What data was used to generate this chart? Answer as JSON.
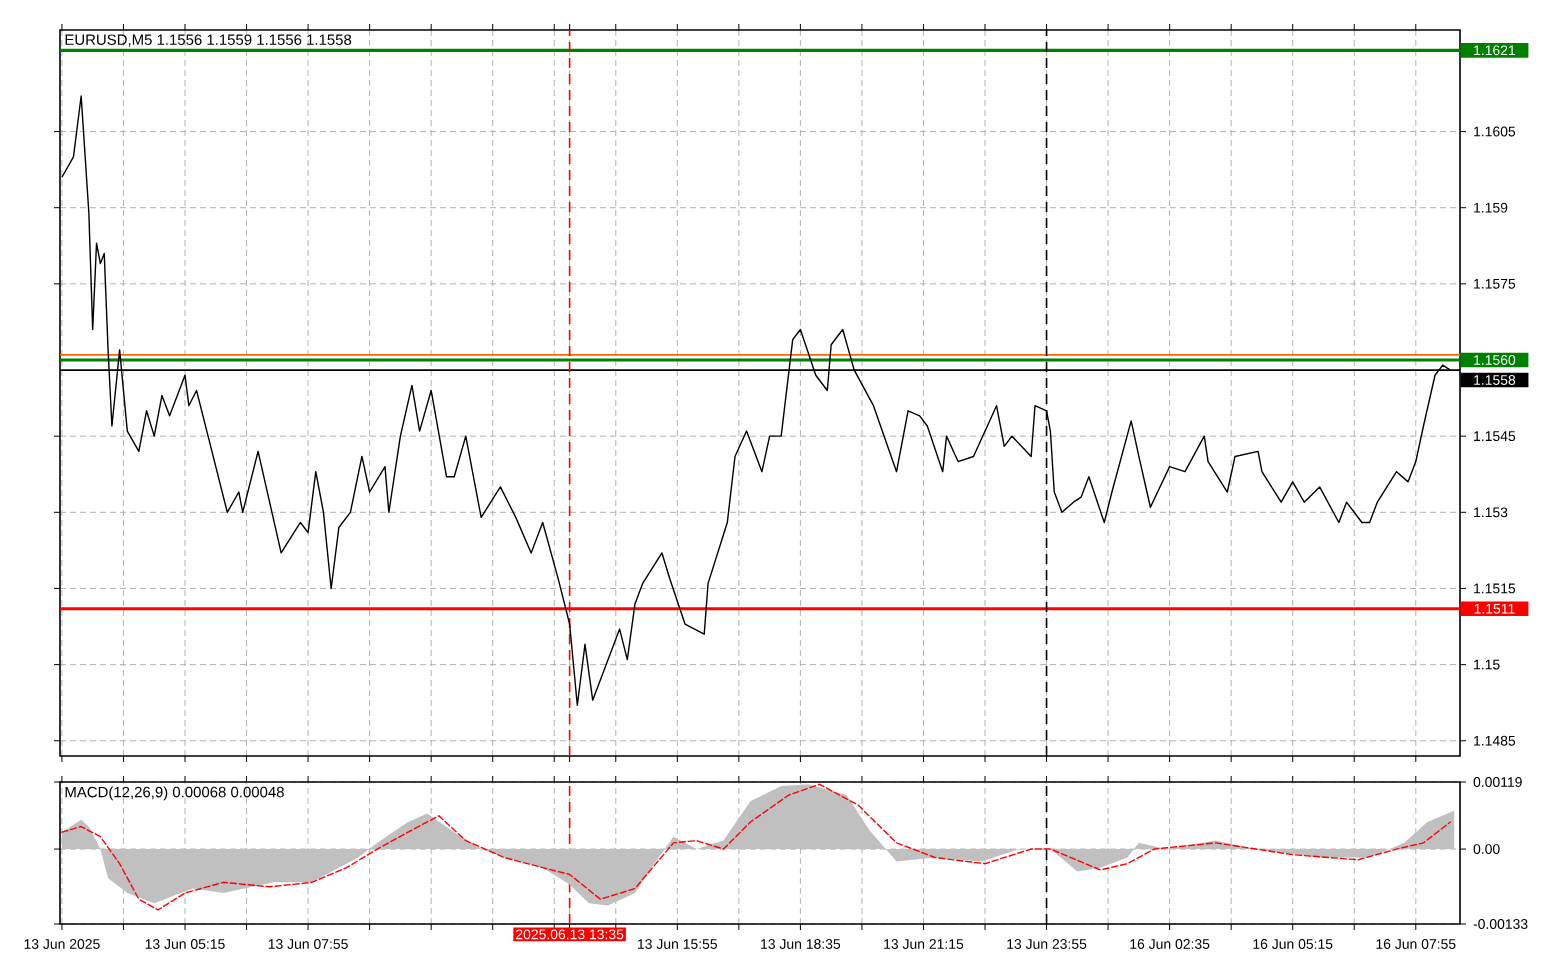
{
  "chart_data": [
    {
      "type": "line",
      "title": "EURUSD,M5  1.1556 1.1559 1.1556 1.1558",
      "categories": [
        "13 Jun 2025",
        null,
        null,
        null,
        null,
        null,
        null,
        null,
        null,
        null,
        null,
        null,
        null,
        null,
        null,
        null,
        null,
        null,
        null,
        null,
        null,
        null,
        null,
        null,
        null,
        null,
        null,
        null,
        null,
        null,
        null,
        null,
        "13 Jun 05:15",
        null,
        null,
        null,
        null,
        null,
        null,
        null,
        null,
        null,
        null,
        null,
        null,
        null,
        null,
        null,
        null,
        null,
        null,
        null,
        null,
        null,
        null,
        null,
        null,
        null,
        null,
        null,
        null,
        null,
        null,
        null,
        "13 Jun 07:55",
        null,
        null,
        null,
        null,
        null,
        null,
        null,
        null,
        null,
        null,
        null,
        null,
        null,
        null,
        null,
        null,
        null,
        null,
        null,
        null,
        null,
        null,
        null,
        null,
        null,
        null,
        null,
        null,
        null,
        null,
        null,
        null,
        null,
        null,
        null,
        null,
        null,
        null,
        null,
        null,
        null,
        null,
        null,
        null,
        null,
        null,
        null,
        null,
        null,
        null,
        null,
        null,
        null,
        null,
        null,
        null,
        null,
        null,
        null,
        null,
        null,
        null,
        null,
        null,
        null,
        null,
        null,
        "2025.06.13 13:35",
        null,
        null,
        null,
        null,
        null,
        null,
        null,
        null,
        null,
        null,
        null,
        null,
        null,
        null,
        null,
        null,
        null,
        null,
        null,
        null,
        null,
        null,
        null,
        null,
        null,
        null,
        null,
        "13 Jun 15:55",
        null,
        null,
        null,
        null,
        null,
        null,
        null,
        null,
        null,
        null,
        null,
        null,
        null,
        null,
        null,
        null,
        null,
        null,
        null,
        null,
        null,
        null,
        null,
        null,
        null,
        null,
        null,
        null,
        null,
        null,
        null,
        "13 Jun 18:35",
        null,
        null,
        null,
        null,
        null,
        null,
        null,
        null,
        null,
        null,
        null,
        null,
        null,
        null,
        null,
        null,
        null,
        null,
        null,
        null,
        null,
        null,
        null,
        null,
        null,
        null,
        null,
        null,
        null,
        null,
        null,
        "13 Jun 21:15",
        null,
        null,
        null,
        null,
        null,
        null,
        null,
        null,
        null,
        null,
        null,
        null,
        null,
        null,
        null,
        null,
        null,
        null,
        null,
        null,
        null,
        null,
        null,
        null,
        null,
        null,
        null,
        null,
        null,
        null,
        null,
        "13 Jun 23:55",
        null,
        null,
        null,
        null,
        null,
        null,
        null,
        null,
        null,
        null,
        null,
        null,
        null,
        null,
        null,
        null,
        null,
        null,
        null,
        null,
        null,
        null,
        null,
        null,
        null,
        null,
        null,
        null,
        null,
        null,
        null,
        "16 Jun 02:35",
        null,
        null,
        null,
        null,
        null,
        null,
        null,
        null,
        null,
        null,
        null,
        null,
        null,
        null,
        null,
        null,
        null,
        null,
        null,
        null,
        null,
        null,
        null,
        null,
        null,
        null,
        null,
        null,
        null,
        null,
        null,
        "16 Jun 05:15",
        null,
        null,
        null,
        null,
        null,
        null,
        null,
        null,
        null,
        null,
        null,
        null,
        null,
        null,
        null,
        null,
        null,
        null,
        null,
        null,
        null,
        null,
        null,
        null,
        null,
        null,
        null,
        null,
        null,
        null,
        null,
        "16 Jun 07:55",
        null,
        null,
        null,
        null,
        null,
        null,
        null,
        null,
        null,
        null,
        null
      ],
      "series": [
        {
          "color": "#000000",
          "values": [
            1.1596,
            null,
            null,
            1.16,
            null,
            1.1612,
            null,
            1.1589,
            1.1566,
            1.1583,
            1.1579,
            1.1581,
            1.1562,
            1.1547,
            null,
            1.1562,
            null,
            1.1546,
            null,
            null,
            1.1542,
            null,
            1.155,
            null,
            1.1545,
            null,
            1.1553,
            null,
            1.1549,
            null,
            null,
            null,
            1.1557,
            1.1551,
            null,
            1.1554,
            null,
            null,
            1.1545,
            null,
            null,
            null,
            null,
            1.153,
            null,
            null,
            1.1534,
            1.153,
            null,
            null,
            null,
            1.1542,
            null,
            null,
            null,
            null,
            null,
            1.1522,
            null,
            null,
            null,
            null,
            1.1528,
            null,
            1.1526,
            null,
            1.1538,
            null,
            1.153,
            null,
            1.1515,
            null,
            1.1527,
            null,
            null,
            1.153,
            null,
            null,
            1.1541,
            null,
            1.1534,
            null,
            null,
            null,
            1.1539,
            1.153,
            null,
            null,
            1.1545,
            null,
            null,
            1.1555,
            null,
            1.1546,
            null,
            null,
            1.1554,
            null,
            null,
            null,
            1.1537,
            null,
            1.1537,
            null,
            null,
            1.1545,
            null,
            null,
            null,
            1.1529,
            null,
            null,
            null,
            null,
            1.1535,
            null,
            null,
            null,
            1.1529,
            null,
            null,
            null,
            1.1522,
            null,
            null,
            1.1528,
            null,
            null,
            null,
            1.1517,
            null,
            null,
            1.1508,
            null,
            1.1492,
            null,
            1.1504,
            null,
            1.1493,
            null,
            null,
            null,
            null,
            null,
            null,
            1.1507,
            null,
            1.1501,
            null,
            1.1512,
            null,
            1.1516,
            null,
            null,
            null,
            null,
            1.1522,
            null,
            1.1517,
            null,
            null,
            null,
            1.1508,
            null,
            null,
            null,
            null,
            1.1506,
            1.1516,
            null,
            null,
            null,
            null,
            1.1528,
            null,
            1.1541,
            null,
            null,
            1.1546,
            null,
            null,
            null,
            1.1538,
            null,
            1.1545,
            null,
            null,
            1.1545,
            null,
            null,
            1.1564,
            null,
            1.1566,
            null,
            null,
            null,
            1.1557,
            null,
            null,
            1.1554,
            1.1563,
            null,
            null,
            1.1566,
            null,
            null,
            1.1558,
            null,
            null,
            null,
            null,
            1.1551,
            null,
            null,
            null,
            null,
            null,
            1.1538,
            null,
            null,
            1.155,
            null,
            null,
            1.1549,
            null,
            1.1547,
            null,
            null,
            null,
            1.1538,
            1.1545,
            null,
            null,
            1.154,
            null,
            null,
            null,
            1.1541,
            null,
            null,
            null,
            null,
            null,
            1.1551,
            null,
            1.1543,
            null,
            1.1545,
            null,
            null,
            null,
            null,
            1.1541,
            1.1551,
            null,
            null,
            1.155,
            1.1546,
            1.1534,
            null,
            1.153,
            null,
            null,
            1.1532,
            null,
            1.1533,
            null,
            1.1537,
            null,
            null,
            null,
            1.1528,
            null,
            1.1534,
            null,
            null,
            null,
            null,
            1.1548,
            null,
            1.1541,
            null,
            null,
            1.1531,
            null,
            null,
            null,
            null,
            1.1539,
            null,
            null,
            null,
            1.1538,
            null,
            null,
            null,
            null,
            1.1545,
            1.154,
            null,
            null,
            null,
            null,
            1.1534,
            null,
            1.1541,
            null,
            null,
            null,
            null,
            null,
            1.1542,
            1.1538,
            null,
            null,
            null,
            null,
            1.1532,
            null,
            null,
            1.1536,
            null,
            null,
            1.1532,
            null,
            null,
            null,
            1.1535,
            null,
            null,
            null,
            null,
            1.1528,
            null,
            1.1532,
            null,
            null,
            null,
            1.1528,
            null,
            1.1528,
            null,
            1.1532,
            null,
            null,
            null,
            null,
            1.1538,
            null,
            null,
            1.1536,
            null,
            1.154,
            null,
            1.1547,
            null,
            null,
            1.1557,
            null,
            1.1559,
            null,
            1.1558,
            null,
            null
          ]
        }
      ],
      "ylim": [
        1.1482,
        1.1625
      ],
      "yticks": [
        1.1485,
        1.15,
        1.1515,
        1.153,
        1.1545,
        1.1575,
        1.159,
        1.1605
      ],
      "grid": true,
      "tick_labels": "y",
      "ref_lines": [
        {
          "axis": "y",
          "value": 1.1621,
          "label": "1.1621",
          "color": "#008000",
          "line_style": "solid"
        },
        {
          "axis": "y",
          "value": 1.1561,
          "label": null,
          "color": "#ff6600",
          "line_style": "solid"
        },
        {
          "axis": "y",
          "value": 1.156,
          "label": "1.1560",
          "color": "#008000",
          "line_style": "solid"
        },
        {
          "axis": "y",
          "value": 1.1558,
          "label": "1.1558",
          "color": "#000000",
          "line_style": "solid"
        },
        {
          "axis": "y",
          "value": 1.1511,
          "label": "1.1511",
          "color": "#ff0000",
          "line_style": "solid"
        },
        {
          "axis": "x",
          "value": "2025.06.13 13:35",
          "color": "#ff0000",
          "line_style": "dashed"
        },
        {
          "axis": "x",
          "value": "13 Jun 23:55",
          "color": "#000000",
          "line_style": "dashed"
        }
      ]
    },
    {
      "type": "line",
      "title": "MACD(12,26,9) 0.00068 0.00048",
      "categories": [
        "13 Jun 2025",
        null,
        null,
        null,
        null,
        null,
        null,
        null,
        null,
        null,
        null,
        null,
        null,
        null,
        null,
        null,
        null,
        null,
        null,
        null,
        null,
        null,
        null,
        null,
        null,
        null,
        null,
        null,
        null,
        null,
        null,
        null,
        "13 Jun 05:15",
        null,
        null,
        null,
        null,
        null,
        null,
        null,
        null,
        null,
        null,
        null,
        null,
        null,
        null,
        null,
        null,
        null,
        null,
        null,
        null,
        null,
        null,
        null,
        null,
        null,
        null,
        null,
        null,
        null,
        null,
        null,
        "13 Jun 07:55",
        null,
        null,
        null,
        null,
        null,
        null,
        null,
        null,
        null,
        null,
        null,
        null,
        null,
        null,
        null,
        null,
        null,
        null,
        null,
        null,
        null,
        null,
        null,
        null,
        null,
        null,
        null,
        null,
        null,
        null,
        null,
        null,
        null,
        null,
        null,
        null,
        null,
        null,
        null,
        null,
        null,
        null,
        null,
        null,
        null,
        null,
        null,
        null,
        null,
        null,
        null,
        null,
        null,
        null,
        null,
        null,
        null,
        null,
        null,
        null,
        null,
        null,
        null,
        null,
        null,
        null,
        null,
        "2025.06.13 13:35",
        null,
        null,
        null,
        null,
        null,
        null,
        null,
        null,
        null,
        null,
        null,
        null,
        null,
        null,
        null,
        null,
        null,
        null,
        null,
        null,
        null,
        null,
        null,
        null,
        null,
        null,
        null,
        "13 Jun 15:55",
        null,
        null,
        null,
        null,
        null,
        null,
        null,
        null,
        null,
        null,
        null,
        null,
        null,
        null,
        null,
        null,
        null,
        null,
        null,
        null,
        null,
        null,
        null,
        null,
        null,
        null,
        null,
        null,
        null,
        null,
        null,
        "13 Jun 18:35",
        null,
        null,
        null,
        null,
        null,
        null,
        null,
        null,
        null,
        null,
        null,
        null,
        null,
        null,
        null,
        null,
        null,
        null,
        null,
        null,
        null,
        null,
        null,
        null,
        null,
        null,
        null,
        null,
        null,
        null,
        null,
        "13 Jun 21:15",
        null,
        null,
        null,
        null,
        null,
        null,
        null,
        null,
        null,
        null,
        null,
        null,
        null,
        null,
        null,
        null,
        null,
        null,
        null,
        null,
        null,
        null,
        null,
        null,
        null,
        null,
        null,
        null,
        null,
        null,
        null,
        "13 Jun 23:55",
        null,
        null,
        null,
        null,
        null,
        null,
        null,
        null,
        null,
        null,
        null,
        null,
        null,
        null,
        null,
        null,
        null,
        null,
        null,
        null,
        null,
        null,
        null,
        null,
        null,
        null,
        null,
        null,
        null,
        null,
        null,
        "16 Jun 02:35",
        null,
        null,
        null,
        null,
        null,
        null,
        null,
        null,
        null,
        null,
        null,
        null,
        null,
        null,
        null,
        null,
        null,
        null,
        null,
        null,
        null,
        null,
        null,
        null,
        null,
        null,
        null,
        null,
        null,
        null,
        null,
        "16 Jun 05:15",
        null,
        null,
        null,
        null,
        null,
        null,
        null,
        null,
        null,
        null,
        null,
        null,
        null,
        null,
        null,
        null,
        null,
        null,
        null,
        null,
        null,
        null,
        null,
        null,
        null,
        null,
        null,
        null,
        null,
        null,
        null,
        "16 Jun 07:55",
        null,
        null,
        null,
        null,
        null,
        null,
        null,
        null,
        null,
        null,
        null
      ],
      "series": [
        {
          "type": "area",
          "color": "#c0c0c0",
          "values": [
            0.0003,
            null,
            null,
            null,
            null,
            0.00052,
            null,
            0.0004,
            null,
            null,
            0,
            null,
            -0.00052,
            null,
            null,
            null,
            null,
            -0.00078,
            null,
            null,
            null,
            null,
            null,
            null,
            -0.00096,
            null,
            null,
            null,
            null,
            null,
            null,
            null,
            null,
            null,
            -0.0007,
            null,
            null,
            null,
            null,
            null,
            null,
            null,
            -0.00078,
            null,
            null,
            null,
            null,
            null,
            null,
            null,
            null,
            null,
            null,
            null,
            null,
            -0.00059,
            null,
            null,
            null,
            null,
            null,
            null,
            null,
            null,
            null,
            -0.00059,
            null,
            null,
            null,
            null,
            null,
            null,
            -0.00033,
            null,
            null,
            null,
            null,
            -0.00015,
            null,
            null,
            null,
            null,
            0.00011,
            null,
            null,
            null,
            null,
            null,
            null,
            null,
            0.00048,
            null,
            null,
            null,
            null,
            0.00063,
            null,
            null,
            null,
            null,
            null,
            null,
            0.0003,
            null,
            null,
            null,
            null,
            null,
            null,
            0,
            null,
            null,
            null,
            null,
            null,
            -0.00015,
            null,
            null,
            null,
            null,
            null,
            null,
            null,
            null,
            null,
            -0.00033,
            null,
            null,
            null,
            null,
            null,
            null,
            -0.00063,
            null,
            null,
            null,
            null,
            -0.00096,
            null,
            null,
            null,
            null,
            -0.001,
            null,
            null,
            null,
            null,
            null,
            null,
            -0.00078,
            null,
            null,
            null,
            null,
            -0.00026,
            null,
            null,
            null,
            null,
            0.00022,
            null,
            null,
            null,
            null,
            null,
            0,
            null,
            null,
            null,
            null,
            null,
            null,
            0.00015,
            null,
            null,
            null,
            null,
            null,
            null,
            0.00085,
            null,
            null,
            null,
            null,
            null,
            null,
            null,
            0.00112,
            null,
            null,
            null,
            null,
            null,
            null,
            0.00115,
            null,
            null,
            null,
            null,
            null,
            null,
            null,
            null,
            null,
            0.00096,
            null,
            null,
            null,
            null,
            null,
            0.00033,
            null,
            null,
            null,
            null,
            null,
            null,
            -0.00022,
            null,
            null,
            null,
            null,
            null,
            null,
            null,
            null,
            null,
            -0.00015,
            null,
            null,
            null,
            null,
            null,
            null,
            null,
            null,
            null,
            null,
            null,
            -0.00022,
            null,
            null,
            null,
            null,
            null,
            null,
            null,
            null,
            null,
            0,
            null,
            null,
            null,
            null,
            null,
            null,
            null,
            0,
            null,
            null,
            null,
            null,
            null,
            null,
            -0.0004,
            null,
            null,
            null,
            null,
            null,
            -0.00033,
            null,
            null,
            null,
            null,
            null,
            null,
            -0.00015,
            null,
            null,
            0.00011,
            null,
            null,
            null,
            null,
            null,
            null,
            0,
            null,
            null,
            null,
            null,
            null,
            null,
            null,
            null,
            null,
            null,
            null,
            null,
            0.00015,
            null,
            null,
            null,
            null,
            null,
            null,
            null,
            null,
            null,
            0,
            null,
            null,
            null,
            null,
            null,
            null,
            null,
            null,
            null,
            null,
            null,
            null,
            null,
            null,
            null,
            null,
            -0.00015,
            null,
            null,
            null,
            null,
            null,
            null,
            null,
            null,
            null,
            null,
            null,
            null,
            -0.00015,
            null,
            null,
            null,
            null,
            null,
            null,
            null,
            null,
            0.00011,
            null,
            null,
            null,
            null,
            null,
            0.00048,
            null,
            null,
            null,
            null,
            null,
            null,
            0.00068,
            null
          ]
        },
        {
          "type": "line",
          "color": "#ff0000",
          "line_style": "dashed",
          "values": [
            0.0003,
            null,
            null,
            null,
            null,
            0.0004,
            null,
            null,
            null,
            null,
            0.00022,
            null,
            null,
            null,
            null,
            -0.00026,
            null,
            null,
            null,
            null,
            -0.00089,
            null,
            null,
            null,
            null,
            -0.00108,
            null,
            null,
            null,
            null,
            null,
            null,
            -0.00078,
            null,
            null,
            null,
            null,
            null,
            null,
            null,
            null,
            null,
            -0.00059,
            null,
            null,
            null,
            null,
            null,
            null,
            null,
            null,
            null,
            null,
            null,
            -0.00067,
            null,
            null,
            null,
            null,
            null,
            null,
            null,
            null,
            null,
            null,
            -0.00059,
            null,
            null,
            null,
            null,
            null,
            null,
            null,
            null,
            -0.00033,
            null,
            null,
            null,
            null,
            null,
            null,
            null,
            0,
            null,
            null,
            null,
            null,
            null,
            null,
            null,
            0.0003,
            null,
            null,
            null,
            null,
            null,
            null,
            null,
            0.00059,
            null,
            null,
            null,
            null,
            null,
            null,
            0.00015,
            null,
            null,
            null,
            null,
            null,
            null,
            null,
            null,
            null,
            -0.00015,
            null,
            null,
            null,
            null,
            null,
            null,
            null,
            null,
            null,
            -0.00033,
            null,
            null,
            null,
            null,
            null,
            null,
            -0.00045,
            null,
            null,
            null,
            null,
            null,
            null,
            null,
            -0.00089,
            null,
            null,
            null,
            null,
            null,
            null,
            null,
            null,
            -0.0007,
            null,
            null,
            null,
            null,
            null,
            null,
            null,
            null,
            null,
            0.00011,
            null,
            null,
            null,
            null,
            null,
            0.00015,
            null,
            null,
            null,
            null,
            null,
            null,
            0,
            null,
            null,
            null,
            null,
            null,
            null,
            0.00048,
            null,
            null,
            null,
            null,
            null,
            null,
            null,
            null,
            null,
            0.00096,
            null,
            null,
            null,
            null,
            null,
            null,
            null,
            0.00115,
            null,
            null,
            null,
            null,
            null,
            null,
            null,
            null,
            null,
            0.00078,
            null,
            null,
            null,
            null,
            null,
            null,
            null,
            null,
            null,
            0.00011,
            null,
            null,
            null,
            null,
            null,
            null,
            null,
            null,
            null,
            -0.00015,
            null,
            null,
            null,
            null,
            null,
            null,
            null,
            null,
            null,
            null,
            null,
            null,
            -0.00026,
            null,
            null,
            null,
            null,
            null,
            null,
            null,
            null,
            null,
            null,
            null,
            0,
            null,
            null,
            null,
            null,
            0,
            null,
            null,
            null,
            null,
            null,
            null,
            null,
            null,
            null,
            null,
            null,
            null,
            -0.00037,
            null,
            null,
            null,
            null,
            null,
            null,
            -0.00026,
            null,
            null,
            null,
            null,
            null,
            null,
            0,
            null,
            null,
            null,
            null,
            null,
            null,
            null,
            null,
            null,
            null,
            null,
            null,
            null,
            null,
            null,
            0.00011,
            null,
            null,
            null,
            null,
            null,
            null,
            null,
            null,
            null,
            null,
            null,
            null,
            null,
            null,
            null,
            null,
            null,
            null,
            null,
            -0.0001,
            null,
            null,
            null,
            null,
            null,
            null,
            null,
            null,
            null,
            null,
            null,
            null,
            null,
            null,
            null,
            null,
            -0.00019,
            null,
            null,
            null,
            null,
            null,
            null,
            null,
            null,
            null,
            0,
            null,
            null,
            null,
            null,
            null,
            null,
            0.00011,
            null,
            null,
            null,
            null,
            null,
            null,
            0.00048,
            null,
            null
          ]
        }
      ],
      "ylim": [
        -0.00133,
        0.00119
      ],
      "yticks": [
        -0.00133,
        {
          "value": 0,
          "label": "0.00"
        },
        0.00119
      ],
      "grid": true,
      "ref_lines": [
        {
          "axis": "x",
          "value": "2025.06.13 13:35",
          "color": "#ff0000",
          "line_style": "dashed"
        },
        {
          "axis": "x",
          "value": "13 Jun 23:55",
          "color": "#000000",
          "line_style": "dashed"
        }
      ]
    }
  ]
}
